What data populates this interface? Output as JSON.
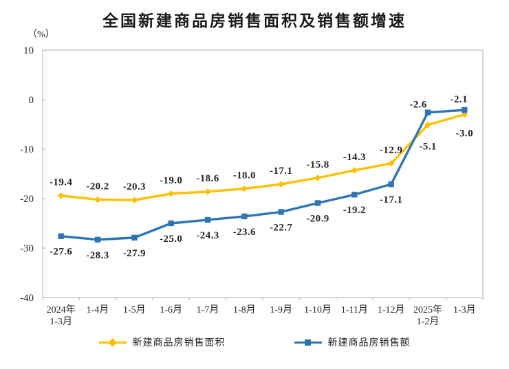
{
  "chart_data": {
    "type": "line",
    "title": "全国新建商品房销售面积及销售额增速",
    "unit_label": "（%）",
    "categories": [
      "2024年\n1-3月",
      "1-4月",
      "1-5月",
      "1-6月",
      "1-7月",
      "1-8月",
      "1-9月",
      "1-10月",
      "1-11月",
      "1-12月",
      "2025年\n1-2月",
      "1-3月"
    ],
    "series": [
      {
        "name": "新建商品房销售面积",
        "color": "#FFC000",
        "marker": "diamond",
        "values": [
          -19.4,
          -20.2,
          -20.3,
          -19.0,
          -18.6,
          -18.0,
          -17.1,
          -15.8,
          -14.3,
          -12.9,
          -5.1,
          -3.0
        ],
        "label_side": [
          "above",
          "above",
          "above",
          "above",
          "above",
          "above",
          "above",
          "above",
          "above",
          "above",
          "below",
          "below"
        ]
      },
      {
        "name": "新建商品房销售额",
        "color": "#2E75B6",
        "marker": "square",
        "values": [
          -27.6,
          -28.3,
          -27.9,
          -25.0,
          -24.3,
          -23.6,
          -22.7,
          -20.9,
          -19.2,
          -17.1,
          -2.6,
          -2.1
        ],
        "label_side": [
          "below",
          "below",
          "below",
          "below",
          "below",
          "below",
          "below",
          "below",
          "below",
          "below",
          "above",
          "above"
        ]
      }
    ],
    "ylim": [
      -40,
      10
    ],
    "ytick_step": 10,
    "ytick_labels": [
      "10",
      "0",
      "-10",
      "-20",
      "-30",
      "-40"
    ],
    "grid": false,
    "legend_position": "bottom",
    "axis_color": "#BFBFBF",
    "text_color": "#262626"
  }
}
